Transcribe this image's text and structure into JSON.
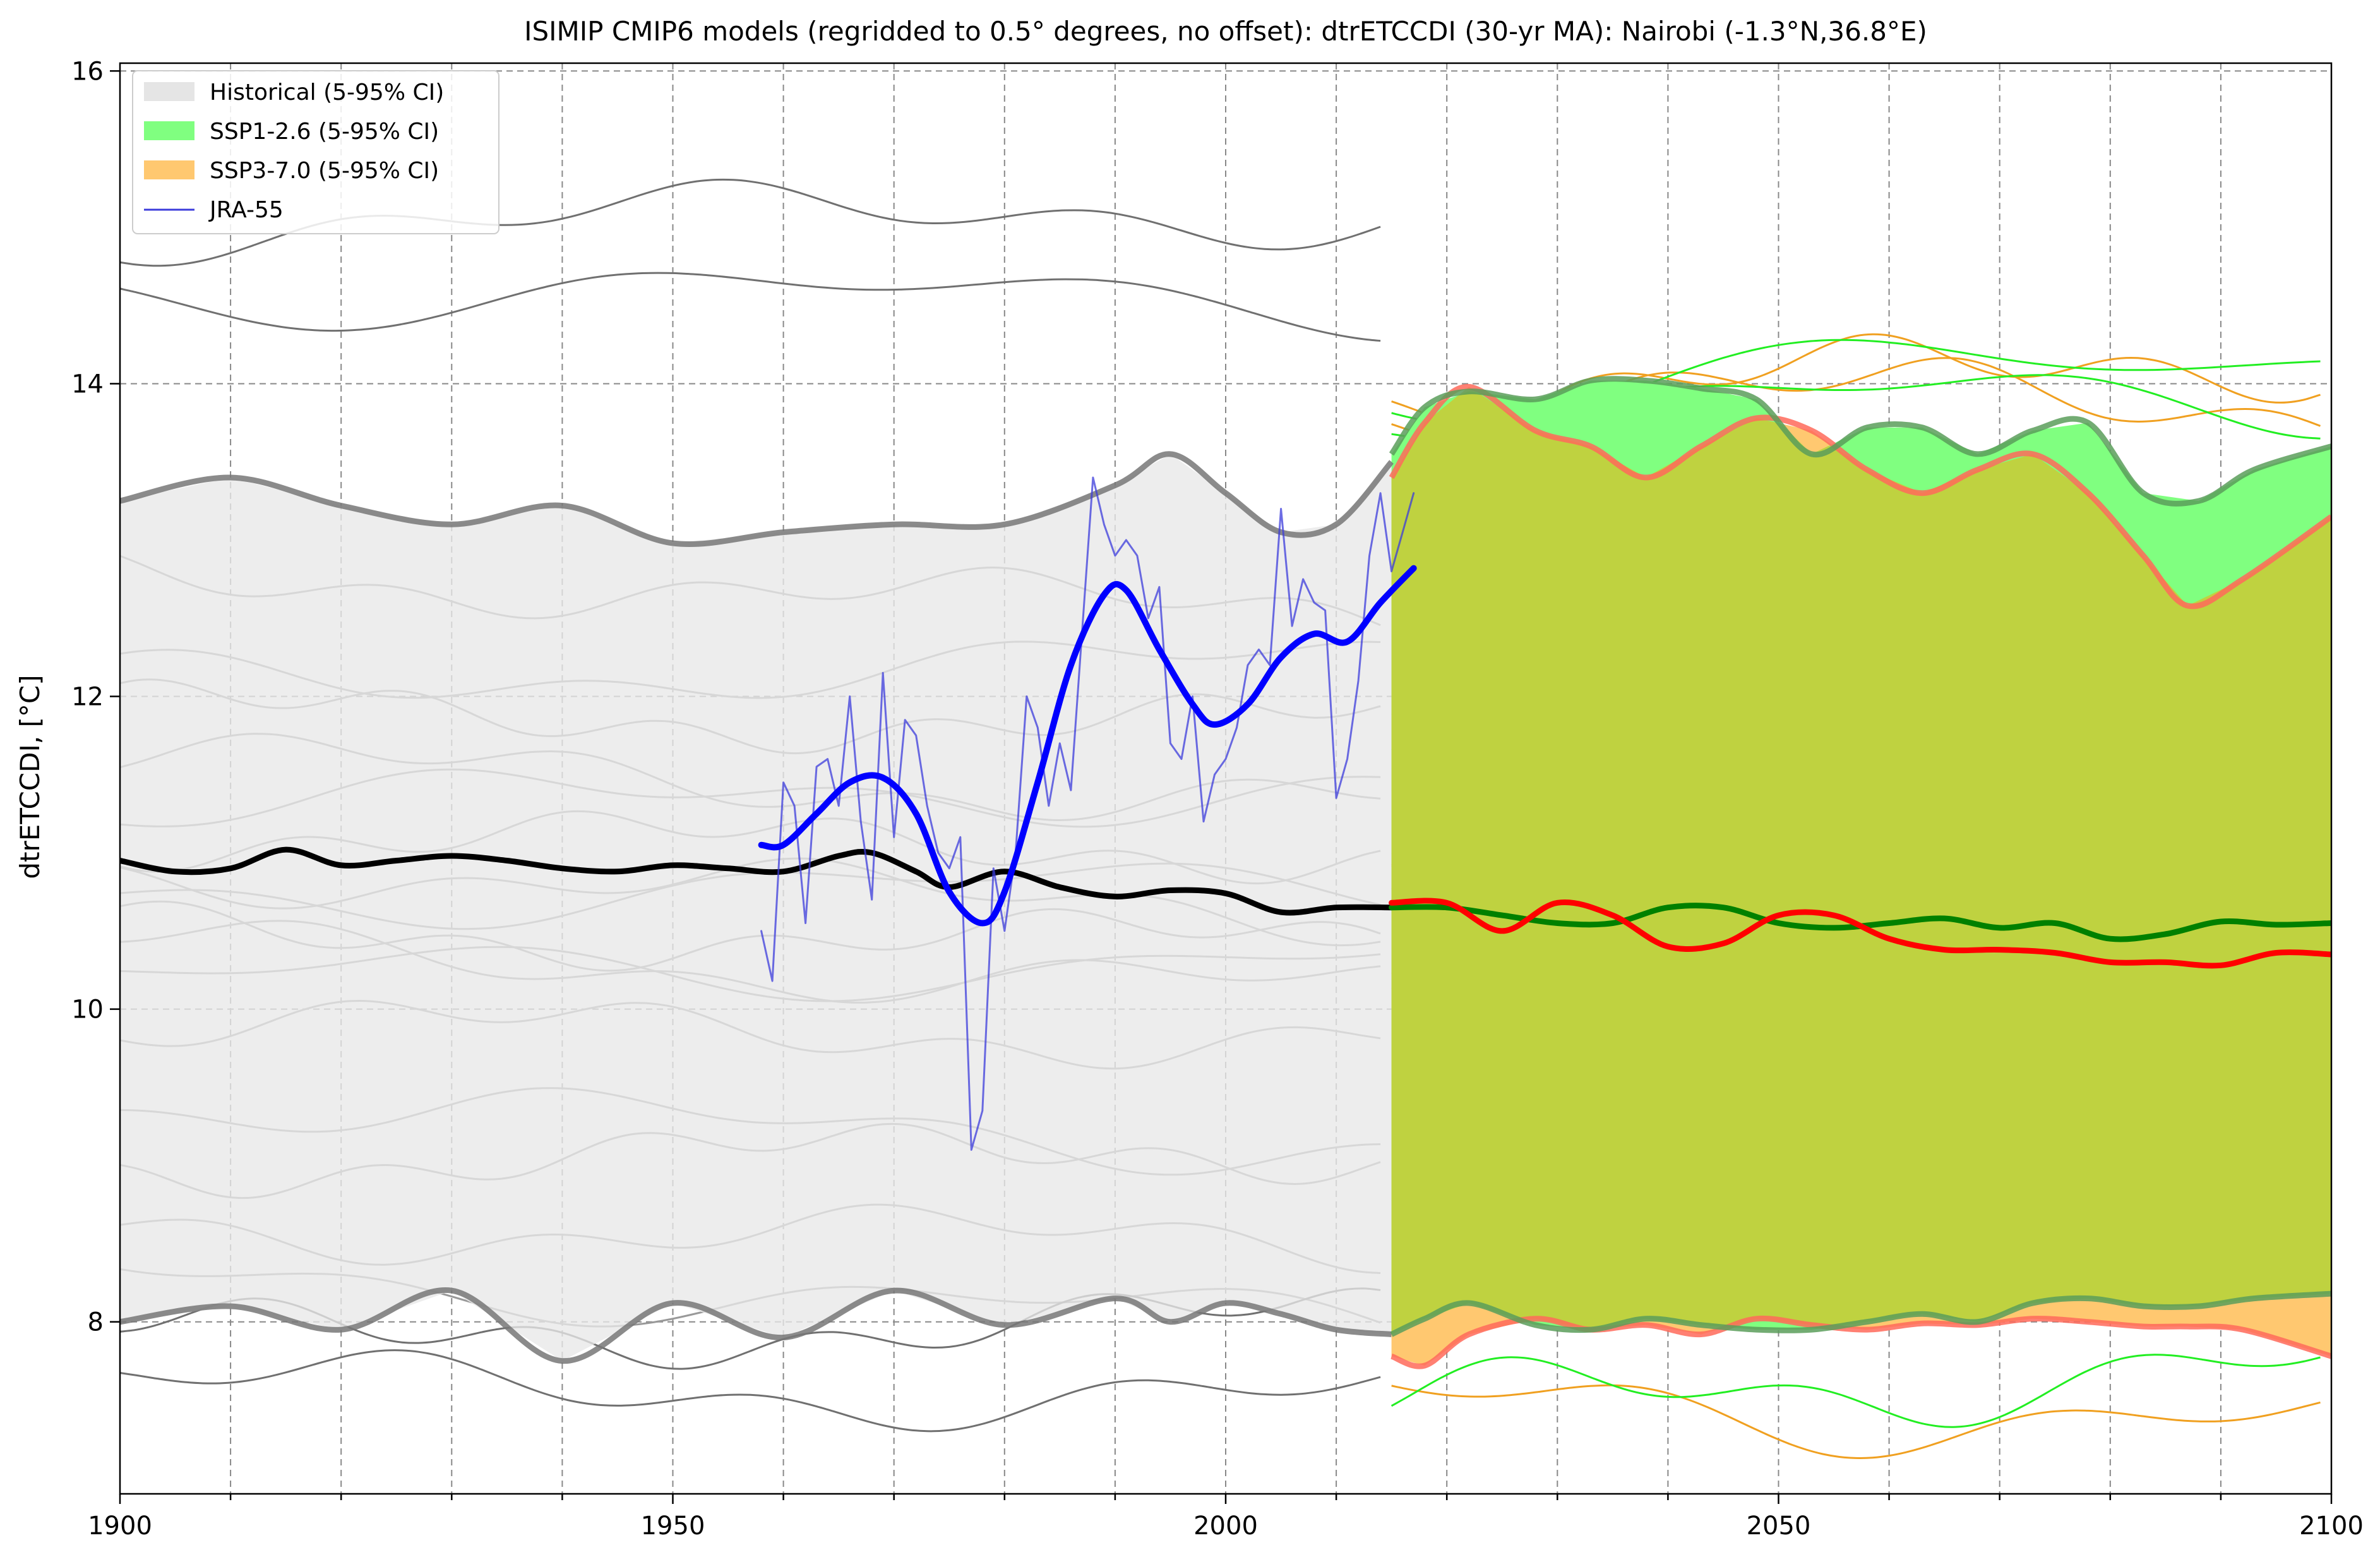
{
  "chart_data": {
    "type": "line",
    "title": "ISIMIP CMIP6 models (regridded to 0.5° degrees, no offset): dtrETCCDI (30-yr MA): Nairobi (-1.3°N,36.8°E)",
    "xlabel": "",
    "ylabel": "dtrETCCDI, [°C]",
    "xlim": [
      1900,
      2100
    ],
    "ylim": [
      6.9,
      16.05
    ],
    "x_ticks": [
      1900,
      1950,
      2000,
      2050,
      2100
    ],
    "x_tick_labels": [
      "1900",
      "1950",
      "2000",
      "2050",
      "2100"
    ],
    "y_ticks": [
      8,
      10,
      12,
      14,
      16
    ],
    "y_tick_labels": [
      "8",
      "10",
      "12",
      "14",
      "16"
    ],
    "grid": true,
    "legend_position": "top-left",
    "legend": [
      {
        "label": "Historical (5-95% CI)",
        "kind": "patch",
        "color": "#e5e5e5"
      },
      {
        "label": "SSP1-2.6 (5-95% CI)",
        "kind": "patch",
        "color": "#80ff80"
      },
      {
        "label": "SSP3-7.0 (5-95% CI)",
        "kind": "patch",
        "color": "#ffc870"
      },
      {
        "label": "JRA-55",
        "kind": "line",
        "color": "#3b3bdb"
      }
    ],
    "bands": [
      {
        "name": "Historical (5-95% CI)",
        "fill": "#e8e8e8",
        "edge": "#777777",
        "x": [
          1900,
          1910,
          1920,
          1930,
          1940,
          1950,
          1960,
          1970,
          1980,
          1990,
          1995,
          2000,
          2005,
          2010,
          2015
        ],
        "upper": [
          13.25,
          13.4,
          13.22,
          13.1,
          13.22,
          12.98,
          13.05,
          13.1,
          13.1,
          13.35,
          13.55,
          13.3,
          13.05,
          13.1,
          13.5
        ],
        "lower": [
          8.0,
          8.1,
          7.95,
          8.2,
          7.75,
          8.12,
          7.9,
          8.2,
          7.98,
          8.15,
          8.0,
          8.12,
          8.05,
          7.95,
          7.92
        ]
      },
      {
        "name": "SSP3-7.0 (5-95% CI)",
        "fill": "#ffc870",
        "edge": "#ff6a5a",
        "x": [
          2015,
          2018,
          2022,
          2028,
          2033,
          2038,
          2043,
          2048,
          2053,
          2058,
          2063,
          2068,
          2073,
          2078,
          2083,
          2087,
          2092,
          2100
        ],
        "upper": [
          13.4,
          13.75,
          13.98,
          13.7,
          13.6,
          13.4,
          13.6,
          13.78,
          13.7,
          13.45,
          13.3,
          13.45,
          13.55,
          13.3,
          12.9,
          12.58,
          12.75,
          13.15
        ],
        "lower": [
          7.78,
          7.72,
          7.92,
          8.02,
          7.95,
          7.98,
          7.92,
          8.02,
          7.98,
          7.95,
          7.99,
          7.98,
          8.02,
          8.0,
          7.97,
          7.97,
          7.95,
          7.78
        ]
      },
      {
        "name": "SSP1-2.6 (5-95% CI)",
        "fill": "#80ff80",
        "edge": "#5a9e5a",
        "x": [
          2015,
          2018,
          2022,
          2028,
          2033,
          2038,
          2043,
          2048,
          2053,
          2058,
          2063,
          2068,
          2073,
          2078,
          2083,
          2088,
          2093,
          2100
        ],
        "upper": [
          13.55,
          13.85,
          13.95,
          13.9,
          14.02,
          14.02,
          13.97,
          13.9,
          13.55,
          13.72,
          13.72,
          13.55,
          13.7,
          13.75,
          13.3,
          13.25,
          13.45,
          13.6
        ],
        "lower": [
          7.92,
          8.02,
          8.12,
          7.98,
          7.95,
          8.02,
          7.98,
          7.95,
          7.95,
          8.0,
          8.05,
          8.0,
          8.12,
          8.15,
          8.1,
          8.1,
          8.15,
          8.18
        ]
      }
    ],
    "overlap_fill": "#c2cf3c",
    "series": [
      {
        "name": "Historical multi-model median",
        "role": "median",
        "color": "#000000",
        "x": [
          1900,
          1905,
          1910,
          1915,
          1920,
          1925,
          1930,
          1935,
          1940,
          1945,
          1950,
          1955,
          1960,
          1965,
          1968,
          1972,
          1975,
          1980,
          1985,
          1990,
          1995,
          2000,
          2005,
          2010,
          2015
        ],
        "y": [
          10.95,
          10.88,
          10.9,
          11.02,
          10.92,
          10.95,
          10.98,
          10.95,
          10.9,
          10.88,
          10.92,
          10.9,
          10.88,
          10.98,
          11.0,
          10.88,
          10.78,
          10.88,
          10.78,
          10.72,
          10.76,
          10.74,
          10.62,
          10.65,
          10.65
        ]
      },
      {
        "name": "SSP1-2.6 multi-model median",
        "role": "median",
        "color": "#008000",
        "x": [
          2015,
          2020,
          2025,
          2030,
          2035,
          2040,
          2045,
          2050,
          2055,
          2060,
          2065,
          2070,
          2075,
          2080,
          2085,
          2090,
          2095,
          2100
        ],
        "y": [
          10.65,
          10.65,
          10.6,
          10.55,
          10.55,
          10.65,
          10.65,
          10.55,
          10.52,
          10.55,
          10.58,
          10.52,
          10.55,
          10.45,
          10.48,
          10.56,
          10.54,
          10.55
        ]
      },
      {
        "name": "SSP3-7.0 multi-model median",
        "role": "median",
        "color": "#ff0000",
        "x": [
          2015,
          2020,
          2025,
          2030,
          2035,
          2040,
          2045,
          2050,
          2055,
          2060,
          2065,
          2070,
          2075,
          2080,
          2085,
          2090,
          2095,
          2100
        ],
        "y": [
          10.68,
          10.68,
          10.5,
          10.68,
          10.6,
          10.4,
          10.42,
          10.6,
          10.6,
          10.45,
          10.38,
          10.38,
          10.36,
          10.3,
          10.3,
          10.28,
          10.36,
          10.35
        ]
      },
      {
        "name": "JRA-55",
        "role": "observed",
        "color": "#3b3bdb",
        "x": [
          1958,
          1959,
          1960,
          1961,
          1962,
          1963,
          1964,
          1965,
          1966,
          1967,
          1968,
          1969,
          1970,
          1971,
          1972,
          1973,
          1974,
          1975,
          1976,
          1977,
          1978,
          1979,
          1980,
          1981,
          1982,
          1983,
          1984,
          1985,
          1986,
          1987,
          1988,
          1989,
          1990,
          1991,
          1992,
          1993,
          1994,
          1995,
          1996,
          1997,
          1998,
          1999,
          2000,
          2001,
          2002,
          2003,
          2004,
          2005,
          2006,
          2007,
          2008,
          2009,
          2010,
          2011,
          2012,
          2013,
          2014,
          2015,
          2016,
          2017
        ],
        "y": [
          10.5,
          10.18,
          11.45,
          11.3,
          10.55,
          11.55,
          11.6,
          11.3,
          12.0,
          11.2,
          10.7,
          12.15,
          11.1,
          11.85,
          11.75,
          11.3,
          11.0,
          10.9,
          11.1,
          9.1,
          9.35,
          10.9,
          10.5,
          11.0,
          12.0,
          11.8,
          11.3,
          11.7,
          11.4,
          12.4,
          13.4,
          13.1,
          12.9,
          13.0,
          12.9,
          12.5,
          12.7,
          11.7,
          11.6,
          12.0,
          11.2,
          11.5,
          11.6,
          11.8,
          12.2,
          12.3,
          12.2,
          13.2,
          12.45,
          12.75,
          12.6,
          12.55,
          11.35,
          11.6,
          12.1,
          12.9,
          13.3,
          12.8,
          13.05,
          13.3
        ]
      },
      {
        "name": "JRA-55 30-yr smoothed",
        "role": "observed-smooth",
        "color": "#0000ff",
        "x": [
          1958,
          1960,
          1963,
          1966,
          1969,
          1972,
          1975,
          1978,
          1980,
          1983,
          1986,
          1989,
          1991,
          1994,
          1997,
          1999,
          2002,
          2005,
          2008,
          2011,
          2014,
          2017
        ],
        "y": [
          11.05,
          11.05,
          11.25,
          11.45,
          11.48,
          11.25,
          10.75,
          10.55,
          10.75,
          11.45,
          12.2,
          12.65,
          12.68,
          12.3,
          11.95,
          11.82,
          11.95,
          12.25,
          12.4,
          12.35,
          12.6,
          12.82
        ]
      }
    ],
    "historical_member_count": 20,
    "ssp126_member_count": 16,
    "ssp370_member_count": 16,
    "colors": {
      "historical_member_grey": "#999999",
      "historical_member_dark": "#707070",
      "ssp126_member": "#22ee22",
      "ssp370_member": "#f0a020",
      "grid": "#888888"
    }
  }
}
